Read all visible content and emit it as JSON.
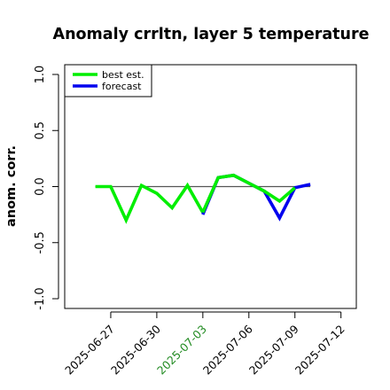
{
  "chart_data": {
    "type": "line",
    "title": "Anomaly crrltn, layer 5 temperature",
    "xlabel": "",
    "ylabel": "anom. corr.",
    "ylim": [
      -1.0,
      1.0
    ],
    "yticks": [
      "-1.0",
      "-0.5",
      "0.0",
      "0.5",
      "1.0"
    ],
    "xlim": [
      "2025-06-24",
      "2025-07-13"
    ],
    "xticks": [
      "2025-06-27",
      "2025-06-30",
      "2025-07-03",
      "2025-07-06",
      "2025-07-09",
      "2025-07-12"
    ],
    "highlight_xtick": "2025-07-03",
    "highlight_color": "#228B22",
    "reference_line_y": 0.0,
    "legend_position": "top-left",
    "grid": false,
    "series": [
      {
        "name": "best est.",
        "color": "#00ee00",
        "points": [
          {
            "x": "2025-06-26",
            "y": 0.0
          },
          {
            "x": "2025-06-27",
            "y": 0.0
          },
          {
            "x": "2025-06-28",
            "y": -0.3
          },
          {
            "x": "2025-06-29",
            "y": 0.01
          },
          {
            "x": "2025-06-30",
            "y": -0.06
          },
          {
            "x": "2025-07-01",
            "y": -0.19
          },
          {
            "x": "2025-07-02",
            "y": 0.01
          },
          {
            "x": "2025-07-03",
            "y": -0.23
          }
        ]
      },
      {
        "name": "forecast",
        "color": "#0000ee",
        "points": [
          {
            "x": "2025-07-03",
            "y": -0.25
          },
          {
            "x": "2025-07-04",
            "y": 0.08
          },
          {
            "x": "2025-07-05",
            "y": 0.1
          },
          {
            "x": "2025-07-06",
            "y": 0.03
          },
          {
            "x": "2025-07-07",
            "y": -0.04
          },
          {
            "x": "2025-07-08",
            "y": -0.28
          },
          {
            "x": "2025-07-09",
            "y": -0.01
          },
          {
            "x": "2025-07-10",
            "y": 0.02
          }
        ]
      },
      {
        "name": "best est.",
        "color": "#00ee00",
        "points": [
          {
            "x": "2025-07-03",
            "y": -0.23
          },
          {
            "x": "2025-07-04",
            "y": 0.08
          },
          {
            "x": "2025-07-05",
            "y": 0.1
          },
          {
            "x": "2025-07-06",
            "y": 0.03
          },
          {
            "x": "2025-07-07",
            "y": -0.04
          },
          {
            "x": "2025-07-08",
            "y": -0.13
          },
          {
            "x": "2025-07-09",
            "y": -0.01
          }
        ]
      }
    ]
  }
}
